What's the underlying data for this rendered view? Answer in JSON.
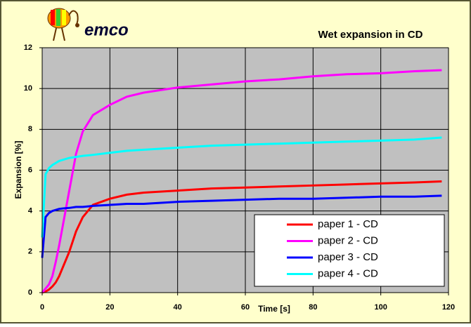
{
  "logo_text": "emco",
  "chart_data": {
    "type": "line",
    "title": "Wet expansion in CD",
    "x_label": "Time [s]",
    "y_label": "Expansion [%]",
    "x": [
      0,
      1,
      2,
      3,
      4,
      5,
      6,
      8,
      10,
      12,
      15,
      20,
      25,
      30,
      40,
      50,
      60,
      70,
      80,
      90,
      100,
      110,
      118
    ],
    "series": [
      {
        "name": "paper 1 - CD",
        "color": "#ff0000",
        "values": [
          0,
          0.05,
          0.15,
          0.3,
          0.5,
          0.8,
          1.2,
          2.0,
          3.0,
          3.7,
          4.3,
          4.6,
          4.8,
          4.9,
          5.0,
          5.1,
          5.15,
          5.2,
          5.25,
          5.3,
          5.35,
          5.4,
          5.45
        ]
      },
      {
        "name": "paper 2 - CD",
        "color": "#ff00ff",
        "values": [
          0,
          0.2,
          0.4,
          0.8,
          1.5,
          2.3,
          3.2,
          5.0,
          6.8,
          7.9,
          8.7,
          9.2,
          9.6,
          9.8,
          10.05,
          10.2,
          10.35,
          10.45,
          10.6,
          10.7,
          10.75,
          10.85,
          10.9
        ]
      },
      {
        "name": "paper 3 - CD",
        "color": "#0000ff",
        "values": [
          1.7,
          3.7,
          3.9,
          4.0,
          4.05,
          4.1,
          4.12,
          4.15,
          4.2,
          4.2,
          4.25,
          4.3,
          4.35,
          4.35,
          4.45,
          4.5,
          4.55,
          4.6,
          4.6,
          4.65,
          4.7,
          4.7,
          4.75
        ]
      },
      {
        "name": "paper 4 - CD",
        "color": "#00ffff",
        "values": [
          2.7,
          5.8,
          6.1,
          6.25,
          6.35,
          6.45,
          6.5,
          6.6,
          6.65,
          6.7,
          6.75,
          6.85,
          6.95,
          7.0,
          7.1,
          7.2,
          7.25,
          7.3,
          7.35,
          7.4,
          7.45,
          7.5,
          7.6
        ]
      }
    ],
    "xlim": [
      0,
      120
    ],
    "xticks": [
      0,
      20,
      40,
      60,
      80,
      100,
      120
    ],
    "ylim": [
      0,
      12
    ],
    "yticks": [
      0,
      2,
      4,
      6,
      8,
      10,
      12
    ],
    "grid": true,
    "plot_background": "#c0c0c0",
    "legend": "lower right"
  }
}
